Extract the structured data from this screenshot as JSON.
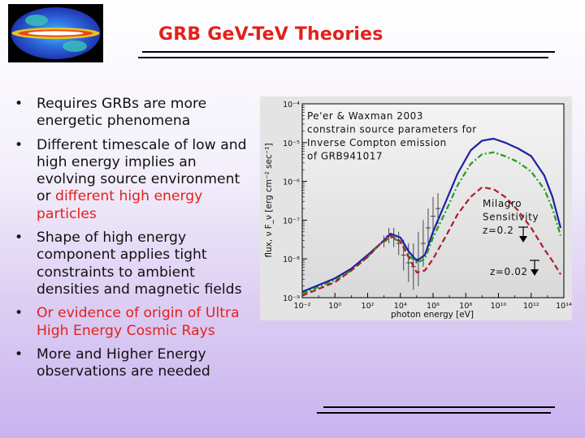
{
  "slide": {
    "title": "GRB GeV-TeV Theories",
    "logo": {
      "icon": "all-sky-map-icon"
    },
    "bullets": [
      {
        "segments": [
          {
            "text": "Requires GRBs are more energetic phenomena",
            "color": "#111111"
          }
        ]
      },
      {
        "segments": [
          {
            "text": "Different timescale of low and high energy implies an evolving source environment or ",
            "color": "#111111"
          },
          {
            "text": "different high energy particles",
            "color": "#e2211c"
          }
        ]
      },
      {
        "segments": [
          {
            "text": "Shape of high energy component applies tight constraints to ambient densities and magnetic fields",
            "color": "#111111"
          }
        ]
      },
      {
        "segments": [
          {
            "text": "Or evidence of origin of Ultra High Energy Cosmic Rays",
            "color": "#e2211c"
          }
        ]
      },
      {
        "segments": [
          {
            "text": "More and Higher Energy observations are needed",
            "color": "#111111"
          }
        ]
      }
    ],
    "accent_color": "#e2211c"
  },
  "chart_data": {
    "type": "line",
    "xlabel": "photon energy [eV]",
    "ylabel": "flux, ν F_ν [erg cm⁻² sec⁻¹]",
    "x_log": true,
    "y_log": true,
    "xlim_exp": [
      -2,
      14
    ],
    "ylim_exp": [
      -9,
      -4
    ],
    "x_tick_labels": [
      "10⁻²",
      "10⁰",
      "10²",
      "10⁴",
      "10⁶",
      "10⁸",
      "10¹⁰",
      "10¹²",
      "10¹⁴"
    ],
    "y_tick_labels": [
      "10⁻⁴",
      "10⁻⁵",
      "10⁻⁶",
      "10⁻⁷",
      "10⁻⁸",
      "10⁻⁹"
    ],
    "series": [
      {
        "color": "#1e1ea8",
        "dash": "solid",
        "log_x": [
          -2,
          0,
          1,
          2,
          2.8,
          3.4,
          4.0,
          4.5,
          5,
          5.5,
          6,
          6.8,
          7.5,
          8.3,
          9.0,
          9.7,
          10.4,
          11.2,
          12.0,
          12.8,
          13.3,
          13.8
        ],
        "log_y": [
          -8.85,
          -8.5,
          -8.25,
          -7.9,
          -7.6,
          -7.35,
          -7.45,
          -7.8,
          -8.05,
          -7.9,
          -7.3,
          -6.5,
          -5.8,
          -5.2,
          -4.95,
          -4.9,
          -5.0,
          -5.15,
          -5.35,
          -5.85,
          -6.4,
          -7.2
        ]
      },
      {
        "color": "#1ea01e",
        "dash": "dashdot",
        "log_x": [
          -2,
          0,
          1,
          2,
          2.8,
          3.4,
          4.0,
          4.5,
          5,
          5.5,
          6,
          6.8,
          7.5,
          8.3,
          9.0,
          9.7,
          10.4,
          11.2,
          12.0,
          12.8,
          13.3,
          13.8
        ],
        "log_y": [
          -8.9,
          -8.55,
          -8.3,
          -7.95,
          -7.6,
          -7.45,
          -7.55,
          -7.9,
          -8.1,
          -8.0,
          -7.45,
          -6.75,
          -6.1,
          -5.55,
          -5.3,
          -5.25,
          -5.35,
          -5.5,
          -5.75,
          -6.2,
          -6.7,
          -7.4
        ]
      },
      {
        "color": "#b01a2a",
        "dash": "dashed",
        "log_x": [
          -2,
          0,
          1,
          2,
          2.8,
          3.4,
          4.0,
          4.5,
          5,
          5.5,
          6,
          6.8,
          7.5,
          8.3,
          9.0,
          9.7,
          10.4,
          11.2,
          12.0,
          12.8,
          13.3,
          13.8
        ],
        "log_y": [
          -8.95,
          -8.6,
          -8.3,
          -7.95,
          -7.6,
          -7.4,
          -7.55,
          -7.95,
          -8.35,
          -8.3,
          -8.0,
          -7.4,
          -6.85,
          -6.4,
          -6.15,
          -6.2,
          -6.4,
          -6.75,
          -7.2,
          -7.75,
          -8.05,
          -8.4
        ]
      }
    ],
    "annotations": {
      "paper_note": [
        "Pe'er & Waxman 2003",
        "constrain source parameters for",
        "Inverse Compton emission",
        "of GRB941017"
      ],
      "milagro": [
        "Milagro",
        "Sensitivity",
        "z=0.2"
      ],
      "milagro_z2": "z=0.02"
    }
  }
}
